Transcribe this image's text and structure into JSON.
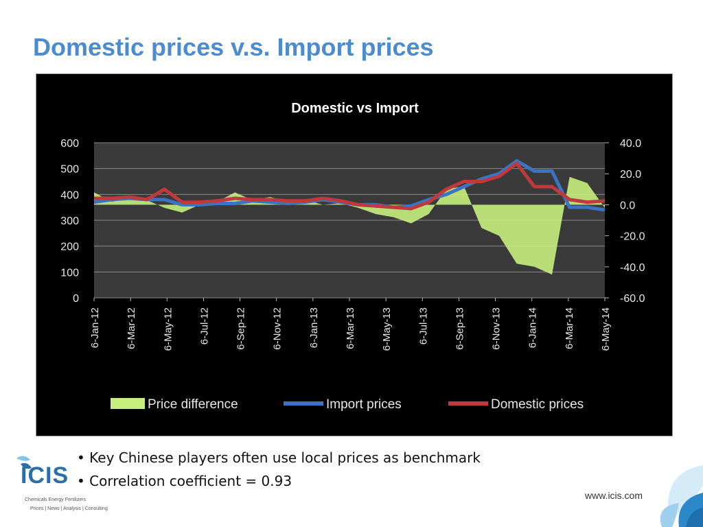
{
  "slide": {
    "title": "Domestic prices v.s. Import prices",
    "bullets": [
      "• Key Chinese players often use local prices as benchmark",
      "• Correlation coefficient = 0.93"
    ],
    "website": "www.icis.com",
    "logo": {
      "name": "ICIS",
      "tagline1": "Chemicals  Energy  Fertilizers",
      "tagline2": "Prices | News | Analysis | Consulting"
    }
  },
  "colors": {
    "title": "#4a8ccf",
    "import": "#3b74c4",
    "domestic": "#c0393c",
    "difference": "#c6ef7e",
    "plot_bg": "#3a3a3a"
  },
  "chart_data": {
    "type": "line",
    "title": "Domestic vs Import",
    "x_tick_labels": [
      "6-Jan-12",
      "6-Mar-12",
      "6-May-12",
      "6-Jul-12",
      "6-Sep-12",
      "6-Nov-12",
      "6-Jan-13",
      "6-Mar-13",
      "6-May-13",
      "6-Jul-13",
      "6-Sep-13",
      "6-Nov-13",
      "6-Jan-14",
      "6-Mar-14",
      "6-May-14"
    ],
    "y_left": {
      "range": [
        0,
        600
      ],
      "ticks": [
        "600",
        "500",
        "400",
        "300",
        "200",
        "100",
        "0"
      ]
    },
    "y_right": {
      "range": [
        -60,
        40
      ],
      "ticks": [
        "40.0",
        "20.0",
        "0.0",
        "-20.0",
        "-40.0",
        "-60.0"
      ]
    },
    "grid": true,
    "legend_position": "bottom",
    "x": [
      "6-Jan-12",
      "6-Feb-12",
      "6-Mar-12",
      "6-Apr-12",
      "6-May-12",
      "6-Jun-12",
      "6-Jul-12",
      "6-Aug-12",
      "6-Sep-12",
      "6-Oct-12",
      "6-Nov-12",
      "6-Dec-12",
      "6-Jan-13",
      "6-Feb-13",
      "6-Mar-13",
      "6-Apr-13",
      "6-May-13",
      "6-Jun-13",
      "6-Jul-13",
      "6-Aug-13",
      "6-Sep-13",
      "6-Oct-13",
      "6-Nov-13",
      "6-Dec-13",
      "6-Jan-14",
      "6-Feb-14",
      "6-Mar-14",
      "6-Apr-14",
      "6-May-14",
      "6-Jun-14"
    ],
    "series": [
      {
        "name": "Price difference",
        "axis": "right",
        "kind": "area",
        "values": [
          8,
          2,
          4,
          3,
          -2,
          -5,
          0,
          2,
          8,
          3,
          5,
          2,
          3,
          0,
          1,
          -2,
          -6,
          -8,
          -12,
          -6,
          10,
          12,
          -15,
          -20,
          -38,
          -40,
          -45,
          18,
          14,
          -2
        ]
      },
      {
        "name": "Import prices",
        "axis": "left",
        "kind": "line",
        "values": [
          370,
          380,
          385,
          380,
          380,
          360,
          360,
          365,
          365,
          375,
          370,
          365,
          370,
          380,
          370,
          360,
          360,
          350,
          355,
          380,
          400,
          430,
          460,
          480,
          530,
          490,
          490,
          350,
          350,
          340
        ]
      },
      {
        "name": "Domestic prices",
        "axis": "left",
        "kind": "line",
        "values": [
          385,
          385,
          390,
          380,
          420,
          370,
          370,
          375,
          385,
          380,
          380,
          375,
          375,
          385,
          375,
          360,
          355,
          350,
          345,
          370,
          420,
          450,
          450,
          470,
          520,
          430,
          430,
          380,
          370,
          375
        ]
      }
    ]
  }
}
